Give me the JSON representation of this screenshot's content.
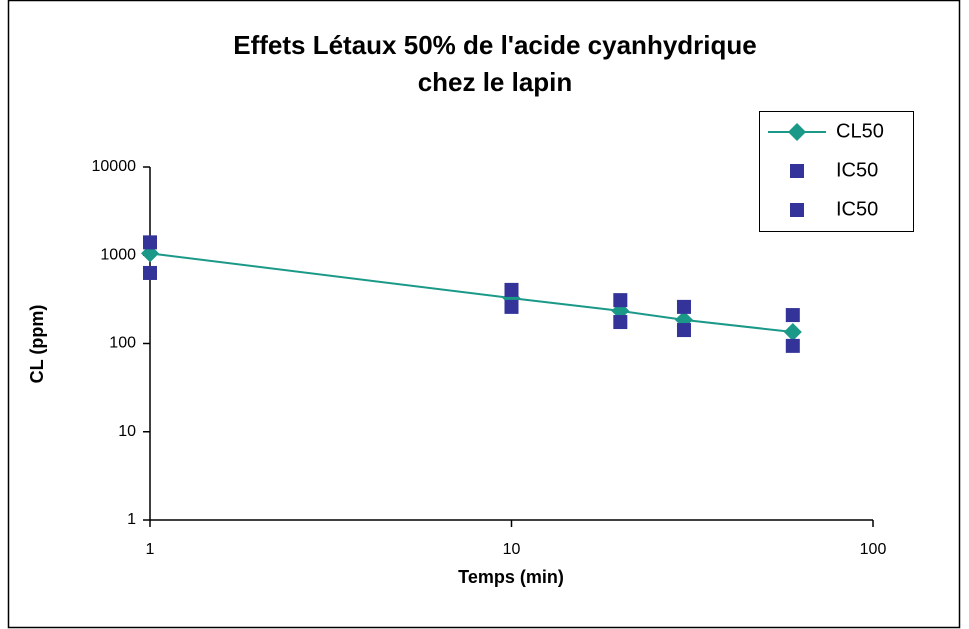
{
  "chart_data": {
    "type": "scatter",
    "title": [
      "Effets Létaux 50% de l'acide cyanhydrique",
      "chez le lapin"
    ],
    "xlabel": "Temps (min)",
    "ylabel": "CL (ppm)",
    "xscale": "log",
    "yscale": "log",
    "xlim": [
      1,
      100
    ],
    "xticks": [
      1,
      10,
      100
    ],
    "ylim": [
      1,
      10000
    ],
    "yticks": [
      1,
      10,
      100,
      1000,
      10000
    ],
    "legend": "top-right",
    "x": [
      1,
      10,
      20,
      30,
      60
    ],
    "series": [
      {
        "name": "CL50",
        "color": "#1a9988",
        "mode": "lines+markers",
        "marker": "diamond",
        "values": [
          1050,
          327,
          234,
          185,
          135
        ]
      },
      {
        "name": "IC50",
        "color": "#333399",
        "mode": "markers",
        "marker": "square",
        "values": [
          1400,
          405,
          310,
          260,
          210
        ]
      },
      {
        "name": "IC50",
        "color": "#333399",
        "mode": "markers",
        "marker": "square",
        "values": [
          630,
          260,
          175,
          142,
          94
        ]
      }
    ]
  }
}
